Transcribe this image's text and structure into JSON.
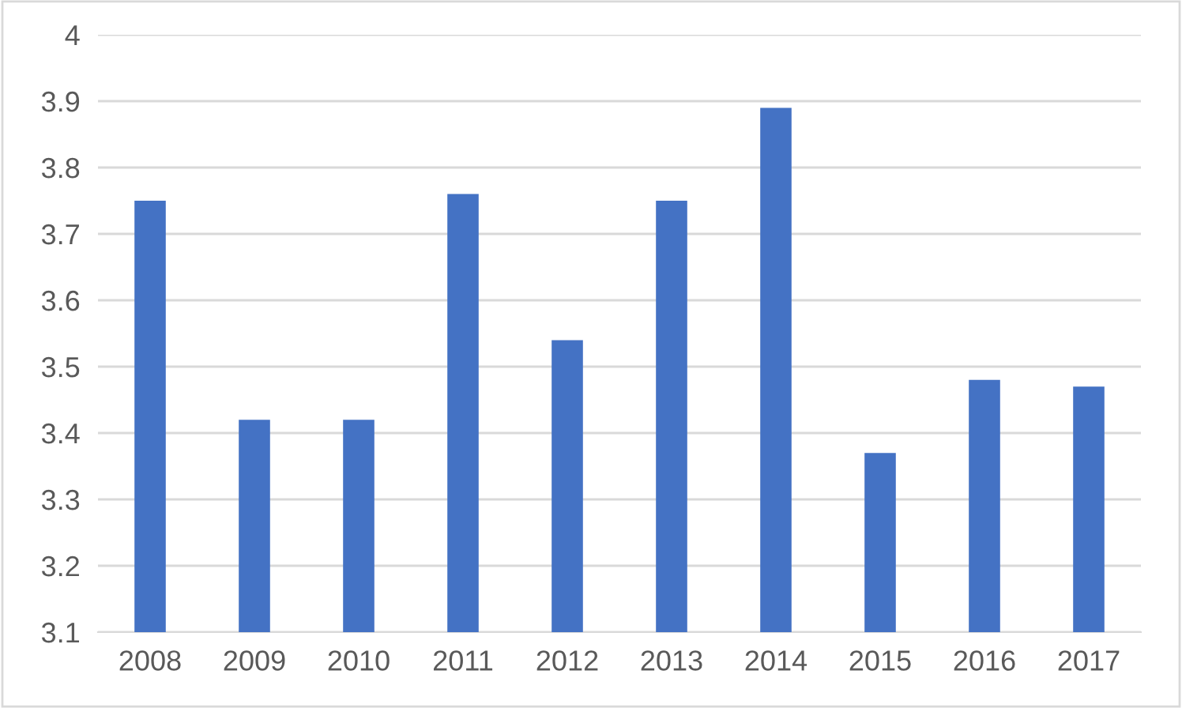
{
  "chart_data": {
    "type": "bar",
    "categories": [
      "2008",
      "2009",
      "2010",
      "2011",
      "2012",
      "2013",
      "2014",
      "2015",
      "2016",
      "2017"
    ],
    "values": [
      3.75,
      3.42,
      3.42,
      3.76,
      3.54,
      3.75,
      3.89,
      3.37,
      3.48,
      3.47
    ],
    "color": "#4472c4",
    "ylim": [
      3.1,
      4
    ],
    "yticks": [
      3.1,
      3.2,
      3.3,
      3.4,
      3.5,
      3.6,
      3.7,
      3.8,
      3.9,
      4
    ],
    "grid": "y"
  }
}
